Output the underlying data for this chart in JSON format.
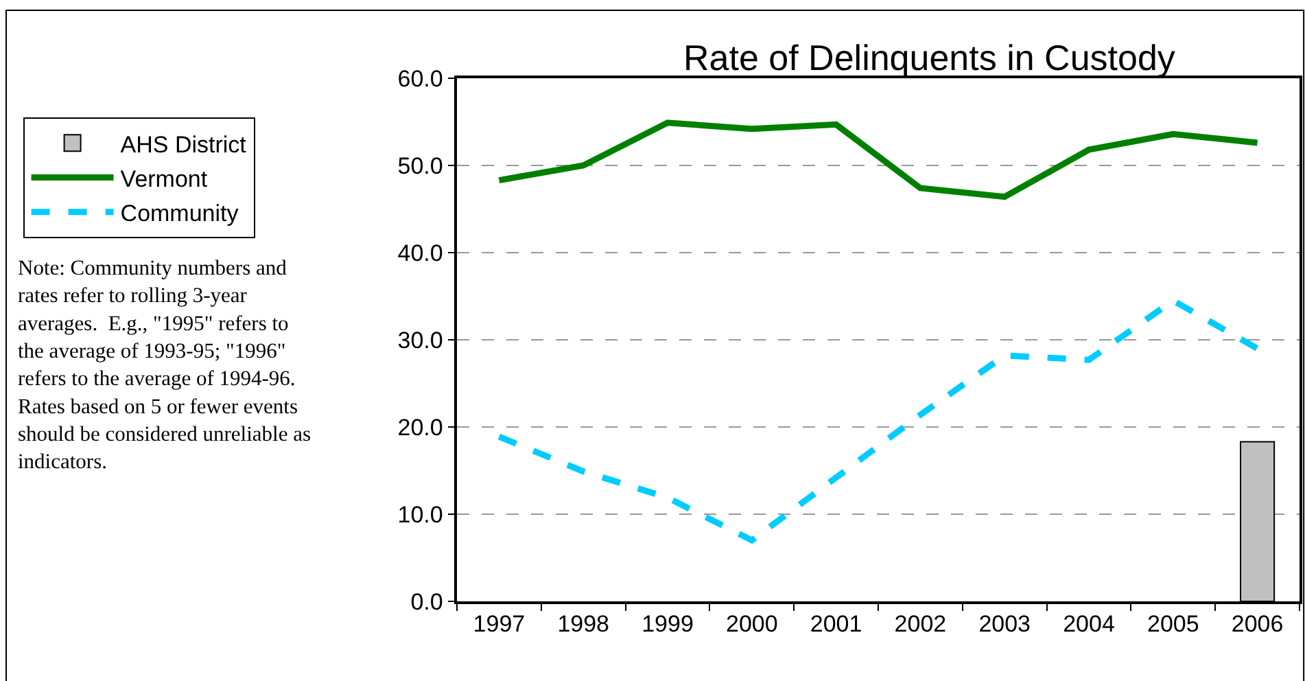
{
  "chart_data": {
    "type": "line",
    "title": "Rate of Delinquents in Custody",
    "categories": [
      "1997",
      "1998",
      "1999",
      "2000",
      "2001",
      "2002",
      "2003",
      "2004",
      "2005",
      "2006"
    ],
    "series": [
      {
        "name": "AHS District",
        "type": "bar",
        "color": "#c0c0c0",
        "values": [
          null,
          null,
          null,
          null,
          null,
          null,
          null,
          null,
          null,
          18.3
        ]
      },
      {
        "name": "Vermont",
        "color": "#008000",
        "line_style": "solid",
        "values": [
          48.3,
          50.0,
          54.9,
          54.2,
          54.7,
          47.4,
          46.4,
          51.8,
          53.6,
          52.6
        ]
      },
      {
        "name": "Community",
        "color": "#00ccff",
        "line_style": "dashed",
        "values": [
          18.9,
          14.9,
          11.9,
          7.0,
          14.2,
          21.4,
          28.2,
          27.7,
          34.5,
          29.0
        ]
      }
    ],
    "ylim": [
      0,
      60
    ],
    "yticks": [
      {
        "value": 0,
        "label": "0.0"
      },
      {
        "value": 10,
        "label": "10.0"
      },
      {
        "value": 20,
        "label": "20.0"
      },
      {
        "value": 30,
        "label": "30.0"
      },
      {
        "value": 40,
        "label": "40.0"
      },
      {
        "value": 50,
        "label": "50.0"
      },
      {
        "value": 60,
        "label": "60.0"
      }
    ],
    "grid": "y",
    "legend": "top left",
    "marker": "none",
    "annotations": [
      "Note: Community numbers and\nrates refer to rolling 3-year\naverages.  E.g., \"1995\" refers to\nthe average of 1993-95; \"1996\"\nrefers to the average of 1994-96.\nRates based on 5 or fewer events\nshould be considered unreliable as\nindicators."
    ]
  }
}
